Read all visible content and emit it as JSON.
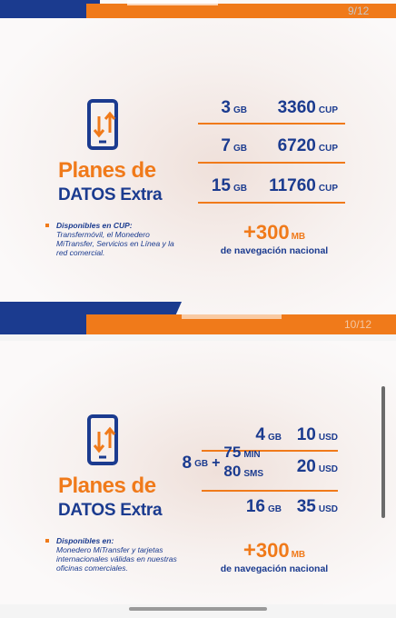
{
  "slides": [
    {
      "counter": "9/12",
      "title_line1": "Planes de",
      "title_line2": "DATOS Extra",
      "plans": [
        {
          "amount": "3",
          "unit": "GB",
          "price": "3360",
          "currency": "CUP"
        },
        {
          "amount": "7",
          "unit": "GB",
          "price": "6720",
          "currency": "CUP"
        },
        {
          "amount": "15",
          "unit": "GB",
          "price": "11760",
          "currency": "CUP"
        }
      ],
      "bonus": {
        "plus": "+",
        "amount": "300",
        "unit": "MB",
        "caption": "de navegación nacional"
      },
      "note": {
        "heading": "Disponibles en CUP:",
        "body": "Transfermóvil, el Monedero MiTransfer, Servicios en Línea y la red comercial."
      }
    },
    {
      "counter": "10/12",
      "title_line1": "Planes de",
      "title_line2": "DATOS Extra",
      "plans": [
        {
          "amount": "4",
          "unit": "GB",
          "price": "10",
          "currency": "USD"
        },
        {
          "amount": "8",
          "unit": "GB",
          "plus": "+",
          "extras": [
            {
              "amount": "75",
              "unit": "MIN"
            },
            {
              "amount": "80",
              "unit": "SMS"
            }
          ],
          "price": "20",
          "currency": "USD"
        },
        {
          "amount": "16",
          "unit": "GB",
          "price": "35",
          "currency": "USD"
        }
      ],
      "bonus": {
        "plus": "+",
        "amount": "300",
        "unit": "MB",
        "caption": "de navegación nacional"
      },
      "note": {
        "heading": "Disponibles en:",
        "body": "Monedero MiTransfer y tarjetas internacionales válidas en nuestras oficinas comerciales."
      }
    }
  ]
}
